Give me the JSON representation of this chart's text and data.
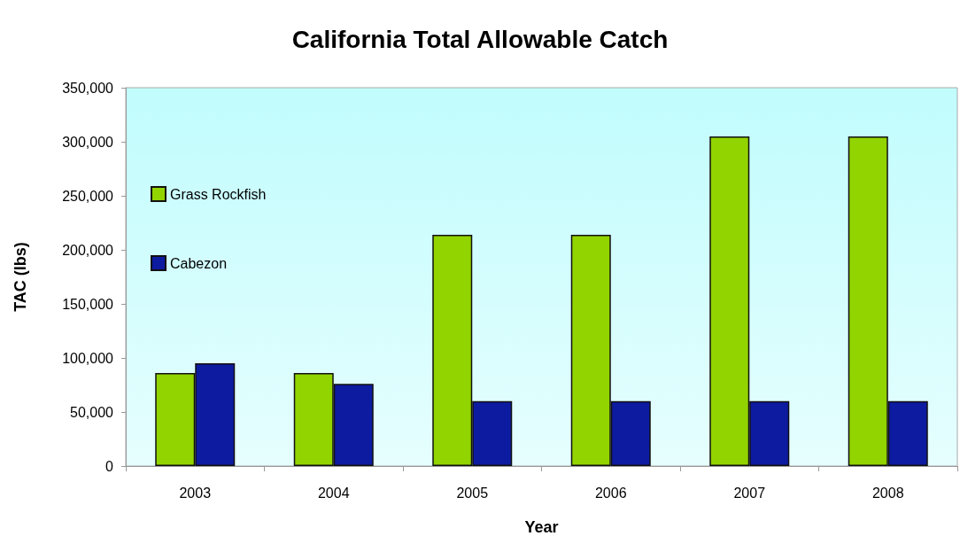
{
  "chart_data": {
    "type": "bar",
    "title": "California Total Allowable Catch",
    "xlabel": "Year",
    "ylabel": "TAC (lbs)",
    "categories": [
      "2003",
      "2004",
      "2005",
      "2006",
      "2007",
      "2008"
    ],
    "series": [
      {
        "name": "Grass Rockfish",
        "color": "#92d400",
        "values": [
          86000,
          86000,
          214000,
          214000,
          305000,
          305000
        ]
      },
      {
        "name": "Cabezon",
        "color": "#0c1ba0",
        "values": [
          95000,
          76000,
          60000,
          60000,
          60000,
          60000
        ]
      }
    ],
    "ylim": [
      0,
      350000
    ],
    "yticks": [
      0,
      {
        "value": 50000,
        "label": "50,000"
      },
      {
        "value": 100000,
        "label": "100,000"
      },
      {
        "value": 150000,
        "label": "150,000"
      },
      {
        "value": 200000,
        "label": "200,000"
      },
      {
        "value": 250000,
        "label": "250,000"
      },
      {
        "value": 300000,
        "label": "300,000"
      },
      {
        "value": 350000,
        "label": "350,000"
      }
    ],
    "grid": false,
    "legend": "left"
  }
}
